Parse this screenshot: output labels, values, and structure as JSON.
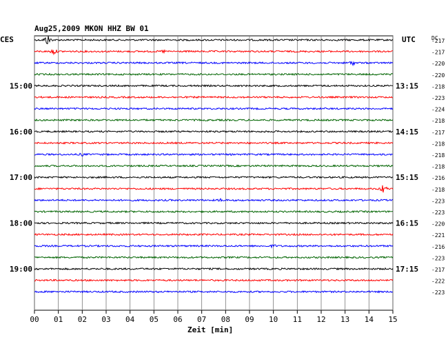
{
  "chart_data": {
    "type": "line",
    "title": "Aug25,2009   MKON HHZ BW 01",
    "left_corner_label": "CES",
    "right_corner_label": "UTC",
    "dc_label": "DC",
    "xlabel": "Zeit [min]",
    "x_ticks": [
      "00",
      "01",
      "02",
      "03",
      "04",
      "05",
      "06",
      "07",
      "08",
      "09",
      "10",
      "11",
      "12",
      "13",
      "14",
      "15"
    ],
    "xlim": [
      0,
      15
    ],
    "grid": true,
    "trace_colors": [
      "#000000",
      "#ff0000",
      "#0000ff",
      "#006400"
    ],
    "left_hour_labels": [
      {
        "row": 4,
        "text": "15:00"
      },
      {
        "row": 8,
        "text": "16:00"
      },
      {
        "row": 12,
        "text": "17:00"
      },
      {
        "row": 16,
        "text": "18:00"
      },
      {
        "row": 20,
        "text": "19:00"
      }
    ],
    "right_hour_labels": [
      {
        "row": 4,
        "text": "13:15"
      },
      {
        "row": 8,
        "text": "14:15"
      },
      {
        "row": 12,
        "text": "15:15"
      },
      {
        "row": 16,
        "text": "16:15"
      },
      {
        "row": 20,
        "text": "17:15"
      }
    ],
    "dc_values": [
      "-217",
      "-217",
      "-220",
      "-220",
      "-218",
      "-223",
      "-224",
      "-218",
      "-217",
      "-218",
      "-218",
      "-218",
      "-216",
      "-218",
      "-223",
      "-223",
      "-220",
      "-221",
      "-216",
      "-223",
      "-217",
      "-222",
      "-223"
    ],
    "events": [
      {
        "row": 0,
        "minute": 0.55,
        "amplitude": 8
      },
      {
        "row": 1,
        "minute": 0.8,
        "amplitude": 5
      },
      {
        "row": 1,
        "minute": 5.4,
        "amplitude": 3
      },
      {
        "row": 2,
        "minute": 13.3,
        "amplitude": 4
      },
      {
        "row": 13,
        "minute": 14.6,
        "amplitude": 7
      },
      {
        "row": 14,
        "minute": 7.8,
        "amplitude": 3
      },
      {
        "row": 18,
        "minute": 10.0,
        "amplitude": 3
      },
      {
        "row": 10,
        "minute": 2.0,
        "amplitude": 3
      }
    ]
  }
}
